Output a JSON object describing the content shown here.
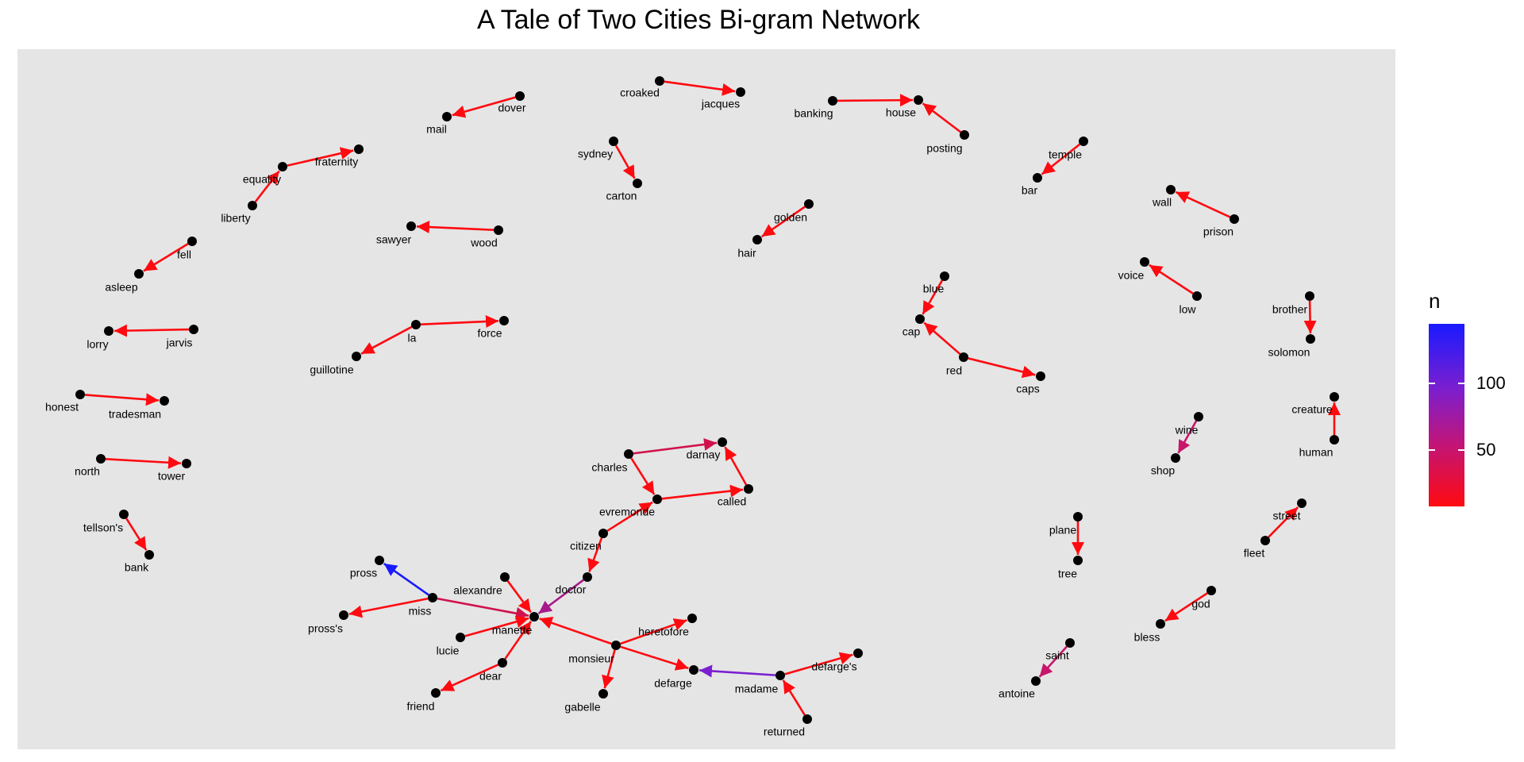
{
  "title": "A Tale of Two Cities Bi-gram Network",
  "legend": {
    "title": "n",
    "gradient": [
      "#ff0a10",
      "#c0157a",
      "#7a1fd0",
      "#1a1aff"
    ],
    "ticks": [
      {
        "label": "100",
        "value": 100
      },
      {
        "label": "50",
        "value": 50
      }
    ]
  },
  "colors": {
    "panel_bg": "#e5e5e5",
    "node": "#000000",
    "edge_low": "#ff0a10",
    "edge_high": "#1a1aff"
  },
  "chart_data": {
    "type": "network",
    "title": "A Tale of Two Cities Bi-gram Network",
    "edge_color_scale": {
      "name": "n",
      "ticks": [
        50,
        100
      ]
    },
    "nodes": [
      "dover",
      "mail",
      "croaked",
      "jacques",
      "banking",
      "house",
      "posting",
      "sydney",
      "carton",
      "temple",
      "bar",
      "equality",
      "fraternity",
      "liberty",
      "wall",
      "prison",
      "sawyer",
      "wood",
      "golden",
      "hair",
      "fell",
      "asleep",
      "voice",
      "low",
      "blue",
      "cap",
      "brother",
      "solomon",
      "lorry",
      "jarvis",
      "la",
      "force",
      "guillotine",
      "red",
      "caps",
      "honest",
      "tradesman",
      "creature",
      "human",
      "wine",
      "shop",
      "north",
      "tower",
      "charles",
      "darnay",
      "evremonde",
      "called",
      "tellson's",
      "bank",
      "street",
      "fleet",
      "plane",
      "tree",
      "citizen",
      "doctor",
      "pross",
      "miss",
      "pross's",
      "alexandre",
      "manette",
      "lucie",
      "dear",
      "friend",
      "monsieur",
      "heretofore",
      "gabelle",
      "defarge",
      "madame",
      "defarge's",
      "returned",
      "god",
      "bless",
      "saint",
      "antoine"
    ],
    "edges": [
      {
        "from": "dover",
        "to": "mail"
      },
      {
        "from": "croaked",
        "to": "jacques"
      },
      {
        "from": "banking",
        "to": "house"
      },
      {
        "from": "posting",
        "to": "house"
      },
      {
        "from": "sydney",
        "to": "carton"
      },
      {
        "from": "temple",
        "to": "bar"
      },
      {
        "from": "equality",
        "to": "fraternity"
      },
      {
        "from": "liberty",
        "to": "equality"
      },
      {
        "from": "prison",
        "to": "wall"
      },
      {
        "from": "wood",
        "to": "sawyer"
      },
      {
        "from": "golden",
        "to": "hair"
      },
      {
        "from": "fell",
        "to": "asleep"
      },
      {
        "from": "low",
        "to": "voice"
      },
      {
        "from": "blue",
        "to": "cap"
      },
      {
        "from": "red",
        "to": "cap"
      },
      {
        "from": "red",
        "to": "caps"
      },
      {
        "from": "brother",
        "to": "solomon"
      },
      {
        "from": "jarvis",
        "to": "lorry"
      },
      {
        "from": "la",
        "to": "force"
      },
      {
        "from": "la",
        "to": "guillotine"
      },
      {
        "from": "honest",
        "to": "tradesman"
      },
      {
        "from": "human",
        "to": "creature"
      },
      {
        "from": "wine",
        "to": "shop"
      },
      {
        "from": "north",
        "to": "tower"
      },
      {
        "from": "charles",
        "to": "darnay"
      },
      {
        "from": "charles",
        "to": "evremonde"
      },
      {
        "from": "called",
        "to": "darnay"
      },
      {
        "from": "evremonde",
        "to": "called"
      },
      {
        "from": "citizen",
        "to": "evremonde"
      },
      {
        "from": "citizen",
        "to": "doctor"
      },
      {
        "from": "tellson's",
        "to": "bank"
      },
      {
        "from": "fleet",
        "to": "street"
      },
      {
        "from": "plane",
        "to": "tree"
      },
      {
        "from": "doctor",
        "to": "manette"
      },
      {
        "from": "miss",
        "to": "pross"
      },
      {
        "from": "miss",
        "to": "pross's"
      },
      {
        "from": "miss",
        "to": "manette"
      },
      {
        "from": "alexandre",
        "to": "manette"
      },
      {
        "from": "lucie",
        "to": "manette"
      },
      {
        "from": "dear",
        "to": "manette"
      },
      {
        "from": "dear",
        "to": "friend"
      },
      {
        "from": "monsieur",
        "to": "manette"
      },
      {
        "from": "monsieur",
        "to": "heretofore"
      },
      {
        "from": "monsieur",
        "to": "gabelle"
      },
      {
        "from": "monsieur",
        "to": "defarge"
      },
      {
        "from": "madame",
        "to": "defarge"
      },
      {
        "from": "madame",
        "to": "defarge's"
      },
      {
        "from": "returned",
        "to": "madame"
      },
      {
        "from": "god",
        "to": "bless"
      },
      {
        "from": "saint",
        "to": "antoine"
      }
    ]
  }
}
